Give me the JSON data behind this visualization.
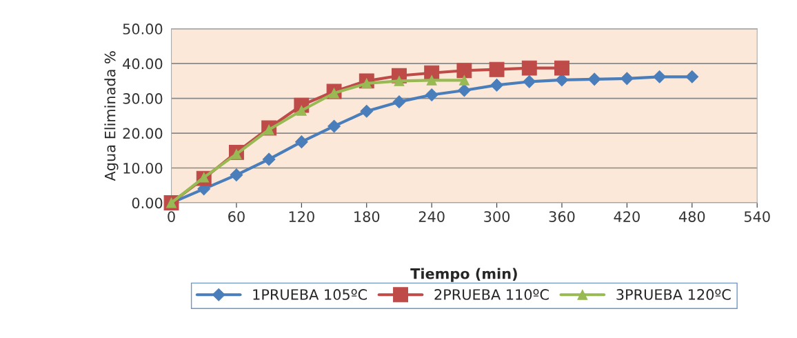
{
  "chart_data": {
    "type": "line",
    "xlabel": "Tiempo (min)",
    "ylabel": "Agua Eliminada %",
    "xlim": [
      0,
      540
    ],
    "xticks": [
      0,
      60,
      120,
      180,
      240,
      300,
      360,
      420,
      480,
      540
    ],
    "ylim": [
      0,
      50
    ],
    "yticks": [
      {
        "value": 0,
        "label": "0.00"
      },
      {
        "value": 10,
        "label": "10.00"
      },
      {
        "value": 20,
        "label": "20.00"
      },
      {
        "value": 30,
        "label": "30.00"
      },
      {
        "value": 40,
        "label": "40.00"
      },
      {
        "value": 50,
        "label": "50.00"
      }
    ],
    "grid": "y",
    "legend": "bottom",
    "series": [
      {
        "name": "1PRUEBA 105ºC",
        "color": "#4a7ebb",
        "marker": "diamond",
        "x": [
          0,
          30,
          60,
          90,
          120,
          150,
          180,
          210,
          240,
          270,
          300,
          330,
          360,
          390,
          420,
          450,
          480
        ],
        "values": [
          0,
          4,
          8,
          12.5,
          17.5,
          22,
          26.3,
          29,
          31,
          32.3,
          33.8,
          34.8,
          35.3,
          35.5,
          35.7,
          36.2,
          36.2
        ]
      },
      {
        "name": "2PRUEBA 110ºC",
        "color": "#be4b48",
        "marker": "square",
        "x": [
          0,
          30,
          60,
          90,
          120,
          150,
          180,
          210,
          240,
          270,
          300,
          330,
          360
        ],
        "values": [
          0,
          7,
          14.5,
          21.5,
          28,
          32,
          35,
          36.5,
          37.3,
          38,
          38.3,
          38.7,
          38.7
        ]
      },
      {
        "name": "3PRUEBA 120ºC",
        "color": "#98b954",
        "marker": "triangle",
        "x": [
          0,
          30,
          60,
          90,
          120,
          150,
          180,
          210,
          240,
          270
        ],
        "values": [
          0,
          7.3,
          14,
          21,
          26.5,
          31.5,
          34.3,
          35,
          35.2,
          35.2
        ]
      }
    ]
  }
}
